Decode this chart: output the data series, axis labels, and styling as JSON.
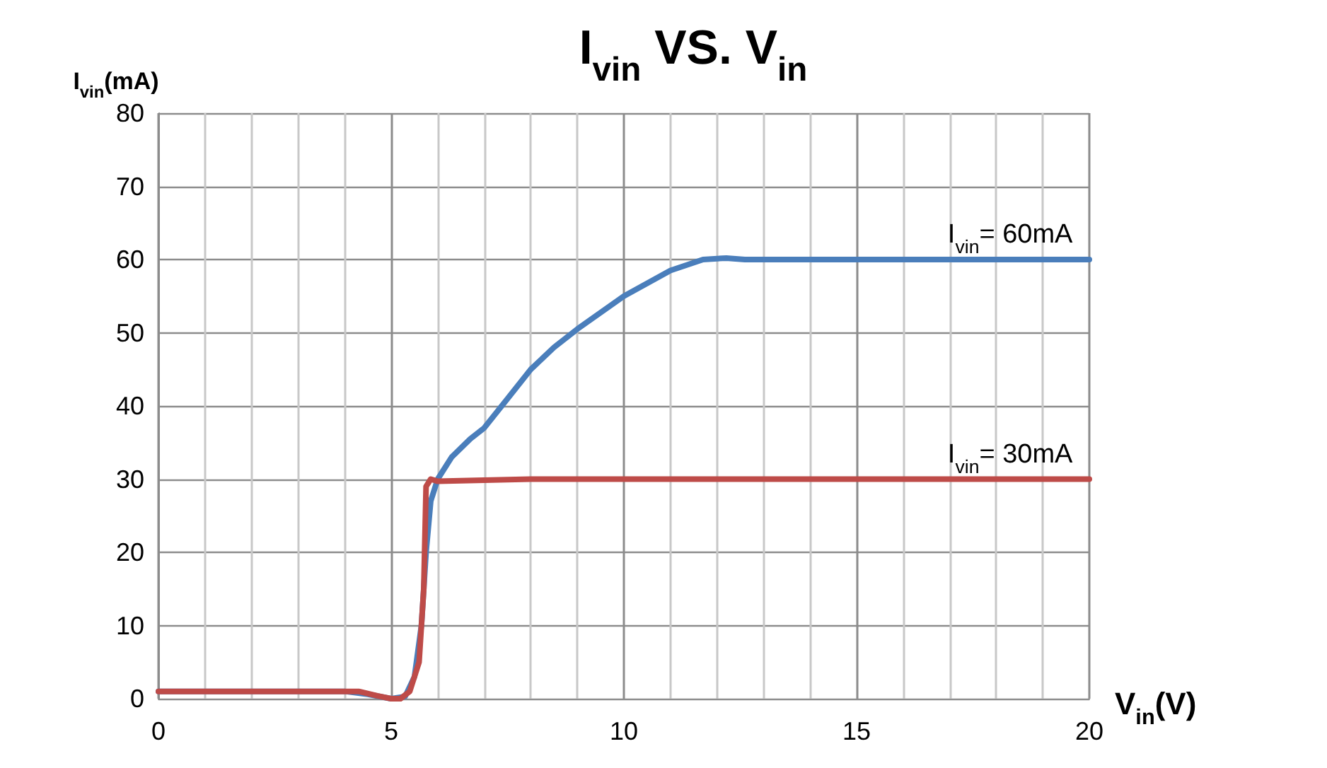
{
  "chart_data": {
    "type": "line",
    "title": "I$_{vin}$ VS. V$_{in}$",
    "xlabel": "V$_{in}$(V)",
    "ylabel": "I$_{vin}$(mA)",
    "xlim": [
      0,
      20
    ],
    "xticks": [
      0,
      {
        "value": 1,
        "label": null
      },
      {
        "value": 2,
        "label": null
      },
      {
        "value": 3,
        "label": null
      },
      {
        "value": 4,
        "label": null
      },
      5,
      {
        "value": 6,
        "label": null
      },
      {
        "value": 7,
        "label": null
      },
      {
        "value": 8,
        "label": null
      },
      {
        "value": 9,
        "label": null
      },
      10,
      {
        "value": 11,
        "label": null
      },
      {
        "value": 12,
        "label": null
      },
      {
        "value": 13,
        "label": null
      },
      {
        "value": 14,
        "label": null
      },
      15,
      {
        "value": 16,
        "label": null
      },
      {
        "value": 17,
        "label": null
      },
      {
        "value": 18,
        "label": null
      },
      {
        "value": 19,
        "label": null
      },
      20
    ],
    "ylim": [
      0,
      80
    ],
    "yticks": [
      0,
      10,
      20,
      30,
      40,
      50,
      60,
      70,
      80
    ],
    "grid": true,
    "marker": "none",
    "line_style": "solid",
    "series": [
      {
        "color": "#4a7ebb",
        "x": [
          0,
          4,
          4.5,
          5,
          5.3,
          5.5,
          5.65,
          5.75,
          5.85,
          6,
          6.3,
          6.7,
          7,
          7.5,
          8,
          8.5,
          9,
          10,
          11,
          11.7,
          12.2,
          12.6,
          13,
          20
        ],
        "values": [
          1,
          1,
          0.6,
          0,
          0.3,
          3,
          10,
          20,
          27,
          30,
          33,
          35.5,
          37,
          41,
          45,
          48,
          50.5,
          55,
          58.5,
          60,
          60.2,
          60,
          60,
          60
        ]
      },
      {
        "color": "#be4b48",
        "x": [
          0,
          4,
          4.3,
          4.7,
          5,
          5.2,
          5.4,
          5.6,
          5.7,
          5.75,
          5.85,
          6,
          8,
          20
        ],
        "values": [
          1,
          1,
          1,
          0.4,
          0,
          0,
          1,
          5,
          15,
          29,
          30,
          29.7,
          30,
          30
        ]
      }
    ],
    "annotations": [
      {
        "text": "I$_{vin}$= 60mA",
        "x": 18.3,
        "y": 60
      },
      {
        "text": "I$_{vin}$= 30mA",
        "x": 18.3,
        "y": 30
      }
    ]
  }
}
